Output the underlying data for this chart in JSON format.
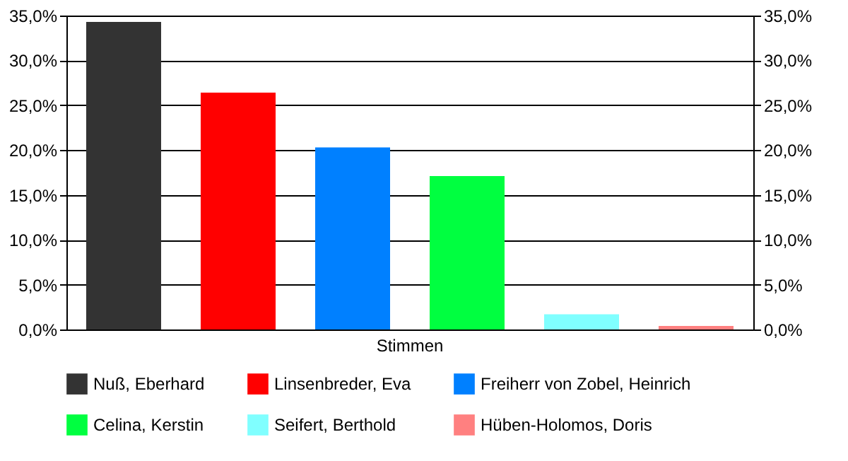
{
  "chart_data": {
    "type": "bar",
    "categories": [
      "Stimmen"
    ],
    "series": [
      {
        "name": "Nuß, Eberhard",
        "color": "#333333",
        "values": [
          34.3
        ]
      },
      {
        "name": "Linsenbreder, Eva",
        "color": "#ff0000",
        "values": [
          26.4
        ]
      },
      {
        "name": "Freiherr von Zobel, Heinrich",
        "color": "#0080ff",
        "values": [
          20.3
        ]
      },
      {
        "name": "Celina, Kerstin",
        "color": "#00ff40",
        "values": [
          17.1
        ]
      },
      {
        "name": "Seifert, Berthold",
        "color": "#80ffff",
        "values": [
          1.7
        ]
      },
      {
        "name": "Hüben-Holomos, Doris",
        "color": "#ff8080",
        "values": [
          0.4
        ]
      }
    ],
    "ylim": [
      0,
      35
    ],
    "yticks": [
      {
        "value": 0,
        "label": "0,0%"
      },
      {
        "value": 5,
        "label": "5,0%"
      },
      {
        "value": 10,
        "label": "10,0%"
      },
      {
        "value": 15,
        "label": "15,0%"
      },
      {
        "value": 20,
        "label": "20,0%"
      },
      {
        "value": 25,
        "label": "25,0%"
      },
      {
        "value": 30,
        "label": "30,0%"
      },
      {
        "value": 35,
        "label": "35,0%"
      }
    ],
    "grid": "y",
    "legend": "bottom"
  }
}
